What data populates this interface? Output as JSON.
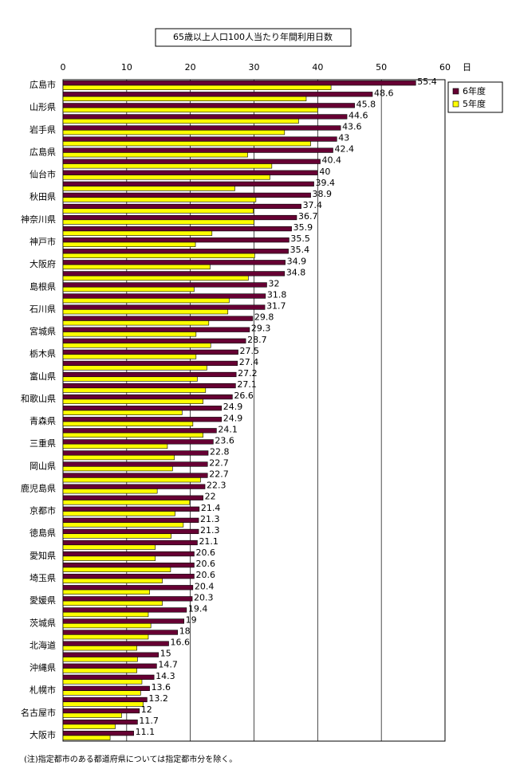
{
  "chart_data": {
    "type": "hbar",
    "title": "65歳以上人口100人当たり年間利用日数",
    "x_unit": "日",
    "footnote": "(注)指定都市のある都道府県については指定都市分を除く。",
    "categories": [
      "広島市",
      null,
      "山形県",
      null,
      "岩手県",
      null,
      "広島県",
      null,
      "仙台市",
      null,
      "秋田県",
      null,
      "神奈川県",
      null,
      "神戸市",
      null,
      "大阪府",
      null,
      "島根県",
      null,
      "石川県",
      null,
      "宮城県",
      null,
      "栃木県",
      null,
      "富山県",
      null,
      "和歌山県",
      null,
      "青森県",
      null,
      "三重県",
      null,
      "岡山県",
      null,
      "鹿児島県",
      null,
      "京都市",
      null,
      "徳島県",
      null,
      "愛知県",
      null,
      "埼玉県",
      null,
      "愛媛県",
      null,
      "茨城県",
      null,
      "北海道",
      null,
      "沖縄県",
      null,
      "札幌市",
      null,
      "名古屋市",
      null,
      "大阪市"
    ],
    "series": [
      {
        "name": "6年度",
        "color": "#660033",
        "show_labels": true,
        "values": [
          55.4,
          48.6,
          45.8,
          44.6,
          43.6,
          43,
          42.4,
          40.4,
          40,
          39.4,
          38.9,
          37.4,
          36.7,
          35.9,
          35.5,
          35.4,
          34.9,
          34.8,
          32,
          31.8,
          31.7,
          29.8,
          29.3,
          28.7,
          27.5,
          27.4,
          27.2,
          27.1,
          26.6,
          24.9,
          24.9,
          24.1,
          23.6,
          22.8,
          22.7,
          22.7,
          22.3,
          22,
          21.4,
          21.3,
          21.3,
          21.1,
          20.6,
          20.6,
          20.6,
          20.4,
          20.3,
          19.4,
          19,
          18,
          16.6,
          15,
          14.7,
          14.3,
          13.6,
          13.2,
          12,
          11.7,
          11.1
        ]
      },
      {
        "name": "5年度",
        "color": "#ffff00",
        "show_labels": false,
        "values": [
          42.1,
          38.2,
          40,
          37,
          34.8,
          38.9,
          29,
          32.8,
          32.5,
          27,
          30.3,
          29.9,
          30,
          23.4,
          20.8,
          30.1,
          23.1,
          29.1,
          20.6,
          26.1,
          25.9,
          22.9,
          20.9,
          23.2,
          20.9,
          22.6,
          21.1,
          22.4,
          22,
          18.7,
          20.4,
          22,
          16.4,
          17.5,
          17.2,
          21.6,
          14.8,
          19.9,
          17.6,
          18.9,
          17,
          14.5,
          14.5,
          16.9,
          15.6,
          13.6,
          15.6,
          13.4,
          13.8,
          13.4,
          11.6,
          11.7,
          11.6,
          12.4,
          12.2,
          12.6,
          9.2,
          8.2,
          7.4
        ]
      }
    ],
    "xlim": [
      0,
      60
    ],
    "xticks": [
      0,
      10,
      20,
      30,
      40,
      50,
      60
    ],
    "grid": true,
    "legend": "right"
  }
}
